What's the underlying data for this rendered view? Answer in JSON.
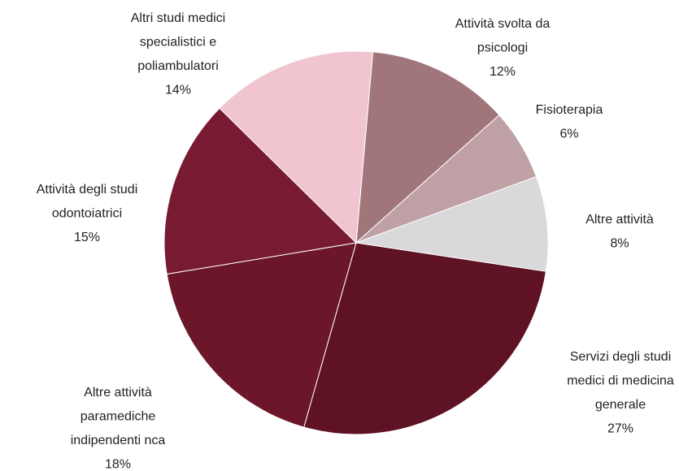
{
  "chart_data": {
    "type": "pie",
    "categories": [
      "Attività svolta da psicologi",
      "Fisioterapia",
      "Altre attività",
      "Servizi degli studi medici di medicina generale",
      "Altre attività paramediche indipendenti nca",
      "Attività degli studi odontoiatrici",
      "Altri studi medici specialistici e poliambulatori"
    ],
    "values": [
      12,
      6,
      8,
      27,
      18,
      15,
      14
    ],
    "value_labels": [
      "12%",
      "6%",
      "8%",
      "27%",
      "18%",
      "15%",
      "14%"
    ],
    "colors": [
      "#a0767b",
      "#bfa0a4",
      "#d9d8da",
      "#5e1224",
      "#6c1629",
      "#781b32",
      "#f0c5cf"
    ]
  }
}
